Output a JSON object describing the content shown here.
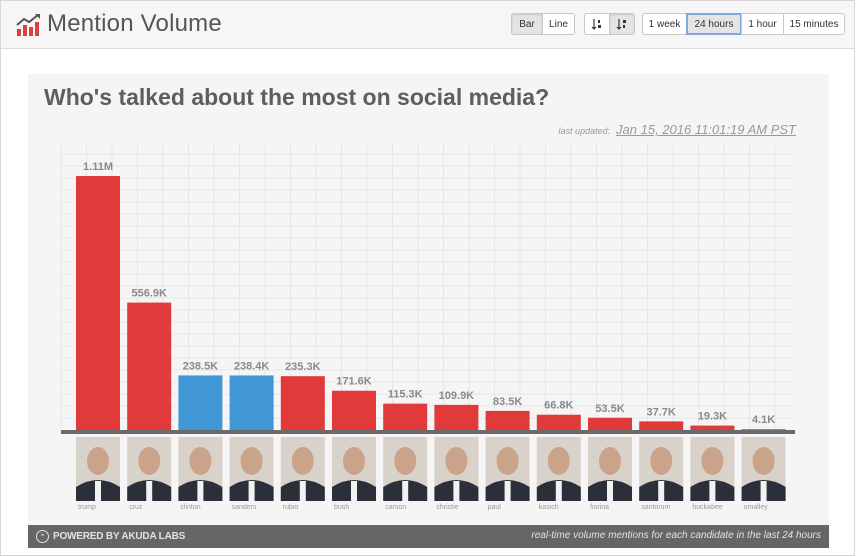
{
  "header": {
    "title": "Mention Volume",
    "logo_icon": "bar-chart-trend-icon",
    "chart_type_buttons": [
      "Bar",
      "Line"
    ],
    "selected_chart_type": "Bar",
    "sort_buttons": [
      "sort-ascending-icon",
      "sort-descending-icon"
    ],
    "selected_sort": "sort-descending-icon",
    "range_buttons": [
      "1 week",
      "24 hours",
      "1 hour",
      "15 minutes"
    ],
    "selected_range": "24 hours"
  },
  "panel": {
    "title": "Who's talked about the most on social media?",
    "updated_label": "last updated:",
    "updated_value": "Jan 15, 2016 11:01:19 AM PST"
  },
  "chart_data": {
    "type": "bar",
    "categories": [
      "trump",
      "cruz",
      "clinton",
      "sanders",
      "rubio",
      "bush",
      "carson",
      "christie",
      "paul",
      "kasich",
      "fiorina",
      "santorum",
      "huckabee",
      "omalley"
    ],
    "values": [
      1110000,
      556900,
      238500,
      238400,
      235300,
      171600,
      115300,
      109900,
      83500,
      66800,
      53500,
      37700,
      19300,
      4100
    ],
    "data_labels": [
      "1.11M",
      "556.9K",
      "238.5K",
      "238.4K",
      "235.3K",
      "171.6K",
      "115.3K",
      "109.9K",
      "83.5K",
      "66.8K",
      "53.5K",
      "37.7K",
      "19.3K",
      "4.1K"
    ],
    "party": [
      "R",
      "R",
      "D",
      "D",
      "R",
      "R",
      "R",
      "R",
      "R",
      "R",
      "R",
      "R",
      "R",
      "D"
    ],
    "colors": {
      "R": "#e03a3a",
      "D": "#4196d6"
    },
    "ylim": [
      0,
      1250000
    ],
    "grid": true
  },
  "footer": {
    "powered_by": "POWERED BY AKUDA LABS",
    "note": "real-time volume mentions for each candidate in the last 24 hours"
  }
}
